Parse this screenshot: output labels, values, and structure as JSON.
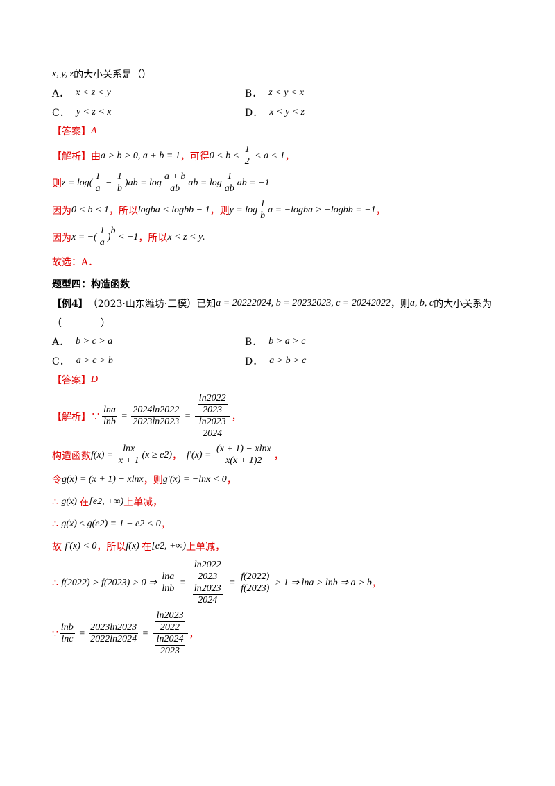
{
  "question": {
    "stem": [
      "x, y, z",
      "的大小关系是（",
      "）"
    ],
    "options": [
      {
        "letter": "A．",
        "expr": "x < z < y"
      },
      {
        "letter": "B．",
        "expr": "z < y < x"
      },
      {
        "letter": "C．",
        "expr": "y < z < x"
      },
      {
        "letter": "D．",
        "expr": "x < y < z"
      }
    ],
    "answer": [
      "【答案】",
      "A"
    ],
    "analysis": [
      [
        "【解析】由",
        "a > b > 0, a + b = 1",
        "，可得",
        "0 < b < ",
        {
          "frac": [
            "1",
            "2"
          ]
        },
        " < a < 1",
        "，"
      ],
      [
        "则",
        "z = ",
        {
          "base": "log",
          "sub": [
            "(",
            {
              "frac": [
                "1",
                "a"
              ]
            },
            " − ",
            {
              "frac": [
                "1",
                "b"
              ]
            },
            ")"
          ]
        },
        "ab = ",
        {
          "base": "log",
          "sub": [
            {
              "frac": [
                "a + b",
                "ab"
              ]
            }
          ]
        },
        "ab = ",
        {
          "base": "log",
          "sub": [
            {
              "frac": [
                "1",
                "ab"
              ]
            }
          ]
        },
        "ab = −1"
      ],
      [
        "因为",
        "0 < b < 1",
        "，所以",
        {
          "base": "log",
          "sub": "b"
        },
        "a < ",
        {
          "base": "log",
          "sub": "b"
        },
        "b − 1",
        "，则",
        "y = ",
        {
          "base": "log",
          "sub": [
            {
              "frac": [
                "1",
                "b"
              ]
            }
          ]
        },
        "a = −",
        {
          "base": "log",
          "sub": "b"
        },
        "a > −",
        {
          "base": "log",
          "sub": "b"
        },
        "b = −1",
        "，"
      ],
      [
        "因为",
        "x = −",
        {
          "base": [
            "(",
            {
              "frac": [
                "1",
                "a"
              ]
            },
            ")"
          ],
          "sup": "b"
        },
        " < −1",
        "，所以",
        "x < z < y",
        "."
      ],
      [
        "故选：A．"
      ]
    ]
  },
  "section": "题型四：构造函数",
  "example": {
    "stem": [
      "【例4】",
      "（2023·山东潍坊·三模）已知",
      "a = ",
      {
        "base": "2022",
        "sup": "2024"
      },
      ", b = ",
      {
        "base": "2023",
        "sup": "2023"
      },
      ", c = ",
      {
        "base": "2024",
        "sup": "2022"
      },
      "，则",
      "a, b, c",
      "的大小关系为"
    ],
    "blank": "（　　　　）",
    "options": [
      {
        "letter": "A．",
        "expr": "b > c > a"
      },
      {
        "letter": "B．",
        "expr": "b > a > c"
      },
      {
        "letter": "C．",
        "expr": "a > c > b"
      },
      {
        "letter": "D．",
        "expr": "a > b > c"
      }
    ],
    "answer": [
      "【答案】",
      "D"
    ],
    "analysis": [
      [
        "【解析】∵",
        {
          "frac": [
            "lna",
            "lnb"
          ]
        },
        " = ",
        {
          "frac": [
            "2024ln2022",
            "2023ln2023"
          ]
        },
        " = ",
        {
          "frac": [
            [
              {
                "frac": [
                  "ln2022",
                  "2023"
                ]
              }
            ],
            [
              {
                "frac": [
                  "ln2023",
                  "2024"
                ]
              }
            ]
          ]
        },
        "，"
      ],
      [
        "构造函数",
        "f(x) = ",
        {
          "frac": [
            "lnx",
            "x + 1"
          ]
        },
        "(x ≥ ",
        {
          "base": "e",
          "sup": "2"
        },
        ")",
        "，　",
        "f′(x) = ",
        {
          "frac": [
            "(x + 1) − xlnx",
            [
              {
                "base": "x(x + 1)",
                "sup": "2"
              }
            ]
          ]
        },
        "，"
      ],
      [
        "令",
        "g(x) = (x + 1) − xlnx",
        "，则",
        "g′(x) = −lnx < 0",
        "，"
      ],
      [
        "∴ ",
        "g(x) ",
        "在",
        "[",
        {
          "base": "e",
          "sup": "2"
        },
        ", +∞)",
        "上单减",
        "，"
      ],
      [
        "∴ ",
        "g(x) ≤ g(",
        {
          "base": "e",
          "sup": "2"
        },
        ") = 1 − ",
        {
          "base": "e",
          "sup": "2"
        },
        " < 0",
        "，"
      ],
      [
        "故 ",
        "f′(x) < 0",
        "，所以",
        "f(x) ",
        "在",
        "[",
        {
          "base": "e",
          "sup": "2"
        },
        ", +∞)",
        "上单减",
        "，"
      ],
      [
        "∴ ",
        "f(2022) > f(2023) > 0 ⇒ ",
        {
          "frac": [
            "lna",
            "lnb"
          ]
        },
        " = ",
        {
          "frac": [
            [
              {
                "frac": [
                  "ln2022",
                  "2023"
                ]
              }
            ],
            [
              {
                "frac": [
                  "ln2023",
                  "2024"
                ]
              }
            ]
          ]
        },
        " = ",
        {
          "frac": [
            "f(2022)",
            "f(2023)"
          ]
        },
        " > 1 ⇒ lna > lnb ⇒ a > b",
        "，"
      ],
      [
        "∵",
        {
          "frac": [
            "lnb",
            "lnc"
          ]
        },
        " = ",
        {
          "frac": [
            "2023ln2023",
            "2022ln2024"
          ]
        },
        " = ",
        {
          "frac": [
            [
              {
                "frac": [
                  "ln2023",
                  "2022"
                ]
              }
            ],
            [
              {
                "frac": [
                  "ln2024",
                  "2023"
                ]
              }
            ]
          ]
        },
        "，"
      ]
    ]
  }
}
